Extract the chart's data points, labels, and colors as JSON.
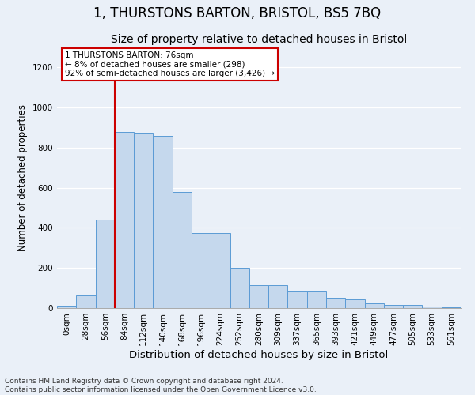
{
  "title": "1, THURSTONS BARTON, BRISTOL, BS5 7BQ",
  "subtitle": "Size of property relative to detached houses in Bristol",
  "xlabel": "Distribution of detached houses by size in Bristol",
  "ylabel": "Number of detached properties",
  "bar_values": [
    12,
    65,
    440,
    880,
    875,
    860,
    580,
    375,
    375,
    200,
    115,
    115,
    85,
    85,
    50,
    45,
    22,
    15,
    15,
    8,
    5
  ],
  "bin_labels": [
    "0sqm",
    "28sqm",
    "56sqm",
    "84sqm",
    "112sqm",
    "140sqm",
    "168sqm",
    "196sqm",
    "224sqm",
    "252sqm",
    "280sqm",
    "309sqm",
    "337sqm",
    "365sqm",
    "393sqm",
    "421sqm",
    "449sqm",
    "477sqm",
    "505sqm",
    "533sqm",
    "561sqm"
  ],
  "bar_color": "#c5d8ed",
  "bar_edge_color": "#5b9bd5",
  "vline_x_index": 3,
  "vline_color": "#cc0000",
  "annotation_text": "1 THURSTONS BARTON: 76sqm\n← 8% of detached houses are smaller (298)\n92% of semi-detached houses are larger (3,426) →",
  "annotation_box_color": "#ffffff",
  "annotation_box_edge": "#cc0000",
  "ylim": [
    0,
    1300
  ],
  "yticks": [
    0,
    200,
    400,
    600,
    800,
    1000,
    1200
  ],
  "footer_text": "Contains HM Land Registry data © Crown copyright and database right 2024.\nContains public sector information licensed under the Open Government Licence v3.0.",
  "bg_color": "#eaf0f8",
  "grid_color": "#ffffff",
  "title_fontsize": 12,
  "subtitle_fontsize": 10,
  "xlabel_fontsize": 9.5,
  "ylabel_fontsize": 8.5,
  "tick_fontsize": 7.5,
  "footer_fontsize": 6.5,
  "annotation_fontsize": 7.5
}
